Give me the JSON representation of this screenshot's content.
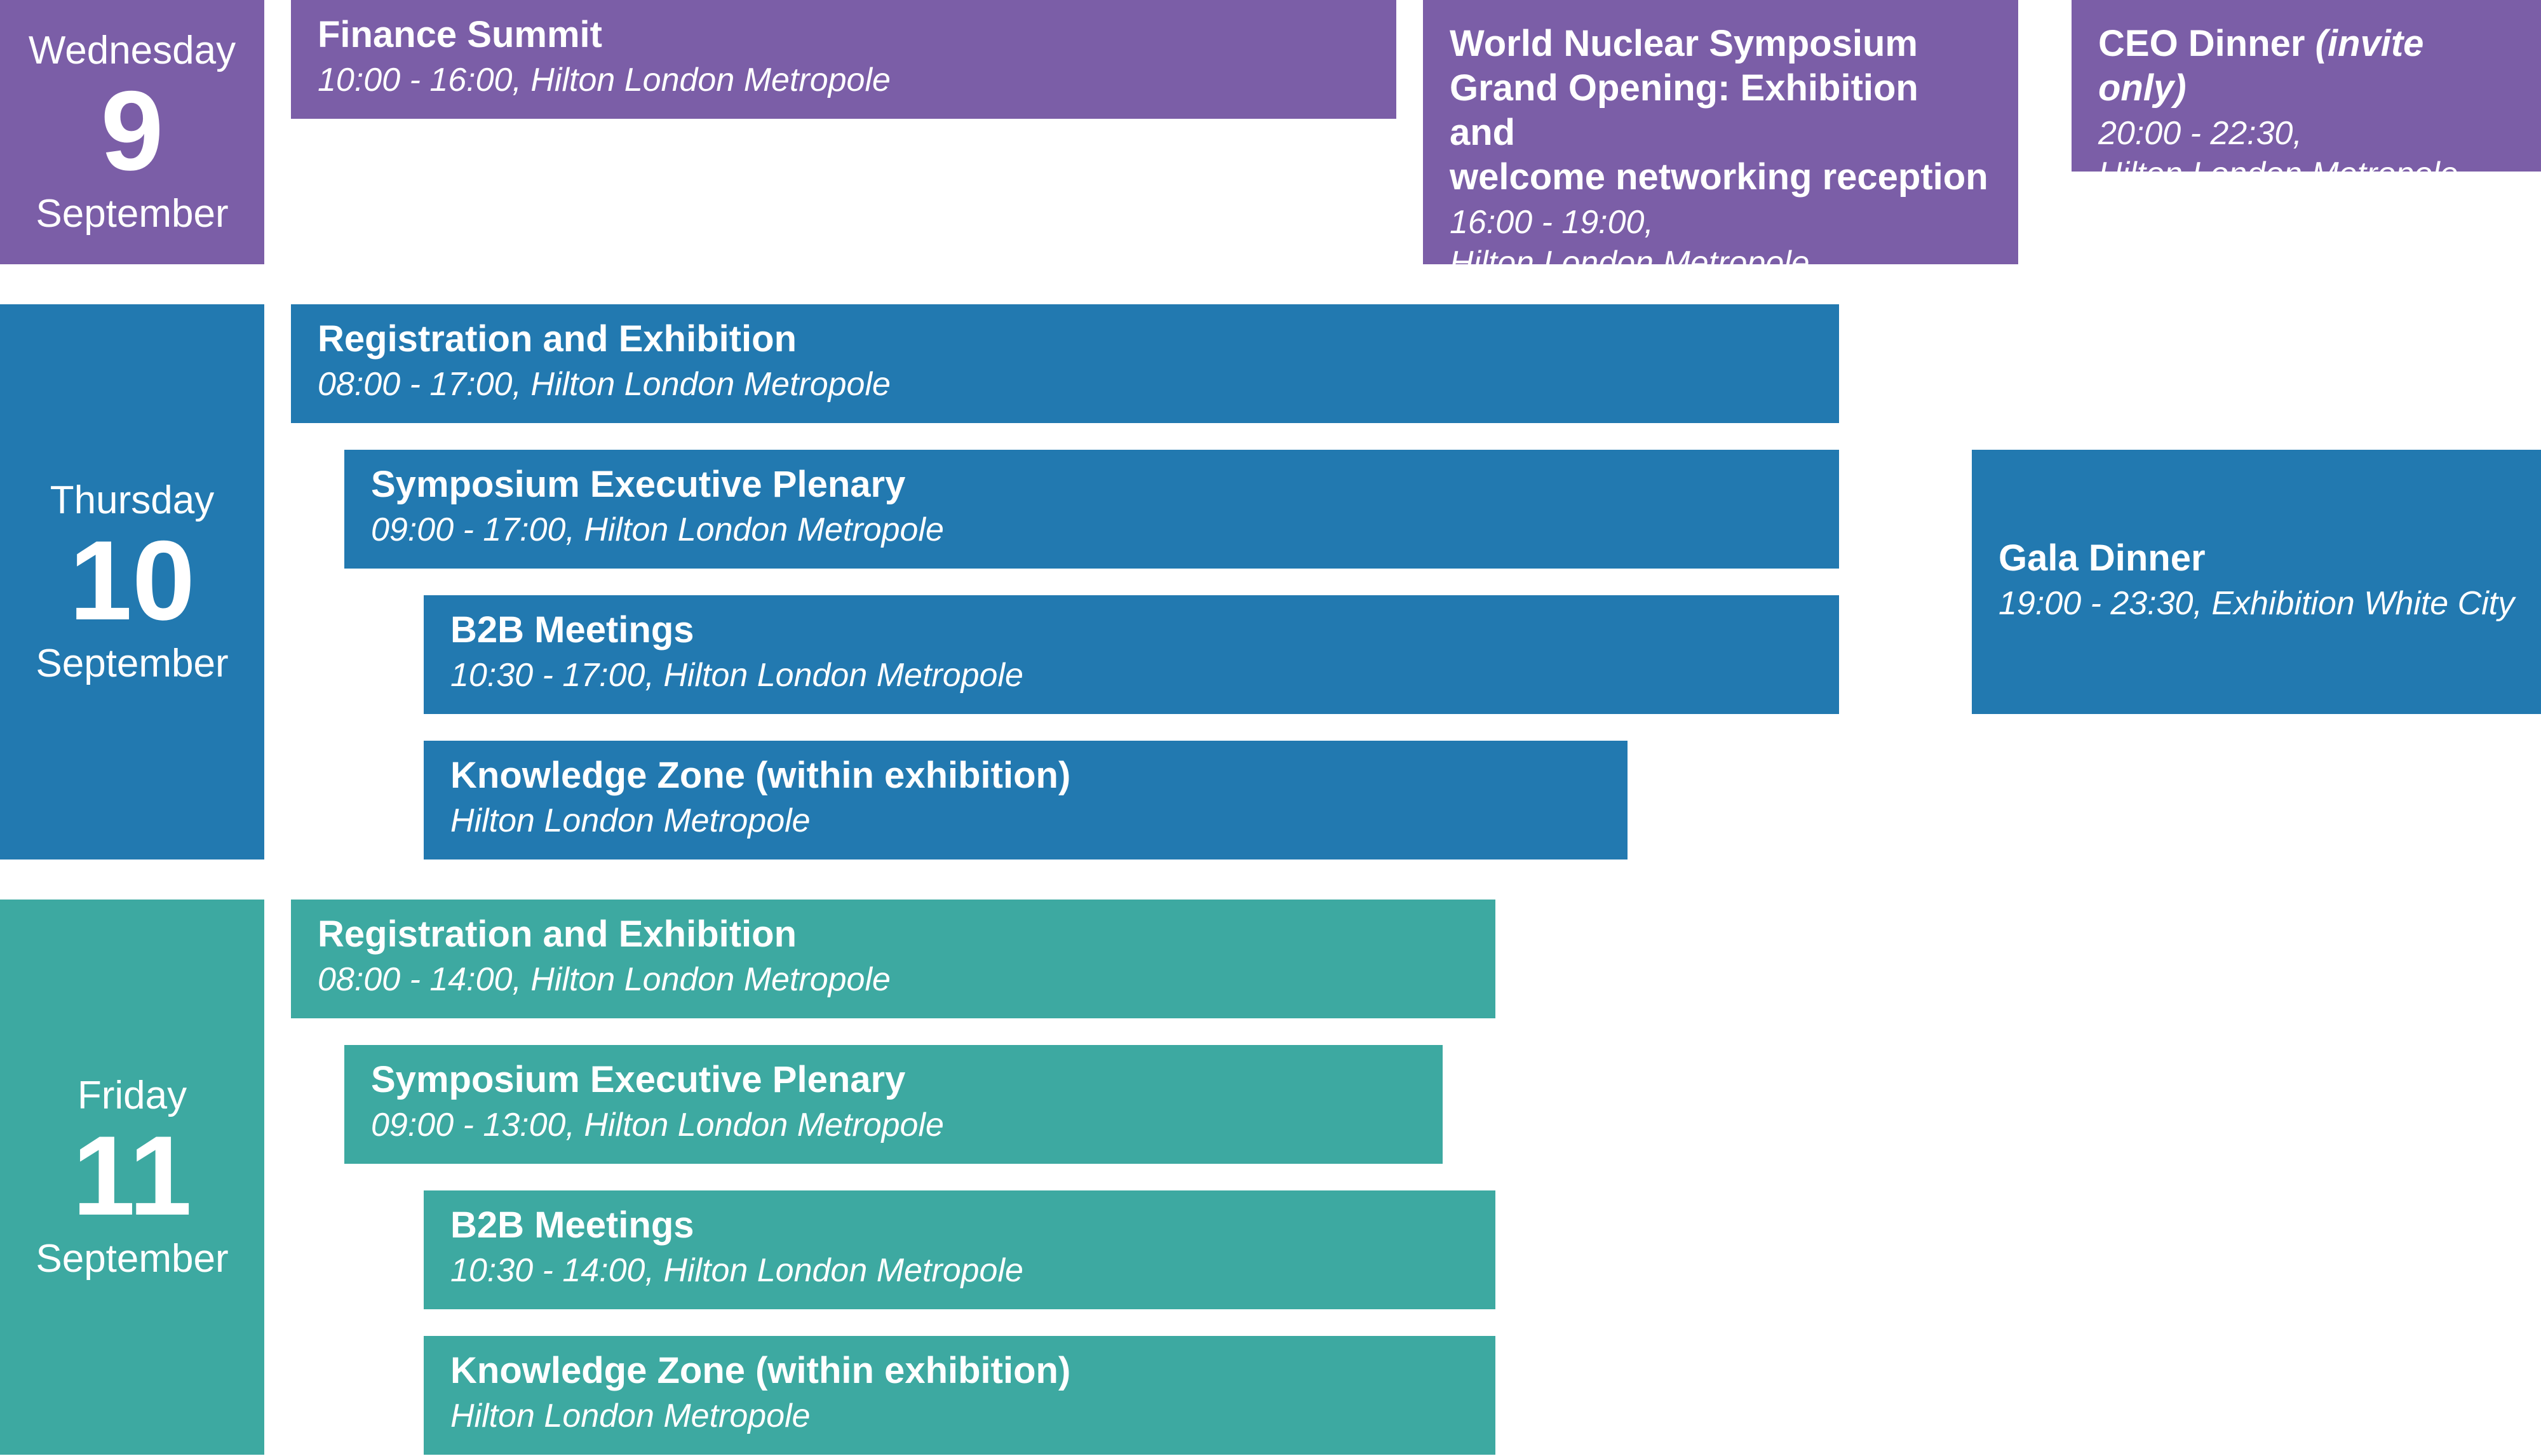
{
  "colors": {
    "wednesday": "#7b5ea7",
    "thursday": "#2279b0",
    "friday": "#3da9a1"
  },
  "days": [
    {
      "name": "Wednesday",
      "number": "9",
      "month": "September"
    },
    {
      "name": "Thursday",
      "number": "10",
      "month": "September"
    },
    {
      "name": "Friday",
      "number": "11",
      "month": "September"
    }
  ],
  "events": {
    "wed_finance": {
      "title": "Finance Summit",
      "detail": "10:00 - 16:00, Hilton London Metropole"
    },
    "wed_opening": {
      "title_lines": [
        "World Nuclear Symposium",
        "Grand Opening: Exhibition and",
        "welcome networking reception"
      ],
      "detail_lines": [
        "16:00 - 19:00,",
        "Hilton London Metropole"
      ]
    },
    "wed_ceo": {
      "title": "CEO Dinner",
      "title_note": "(invite only)",
      "detail_lines": [
        "20:00 - 22:30,",
        "Hilton London Metropole"
      ]
    },
    "thu_registration": {
      "title": "Registration and Exhibition",
      "detail": "08:00 - 17:00, Hilton London Metropole"
    },
    "thu_plenary": {
      "title": "Symposium Executive Plenary",
      "detail": "09:00 - 17:00, Hilton London Metropole"
    },
    "thu_b2b": {
      "title": "B2B Meetings",
      "detail": "10:30 - 17:00, Hilton London Metropole"
    },
    "thu_knowledge": {
      "title": "Knowledge Zone (within exhibition)",
      "detail": "Hilton London Metropole"
    },
    "thu_gala": {
      "title": "Gala Dinner",
      "detail": "19:00 - 23:30, Exhibition White City"
    },
    "fri_registration": {
      "title": "Registration and Exhibition",
      "detail": "08:00 - 14:00, Hilton London Metropole"
    },
    "fri_plenary": {
      "title": "Symposium Executive Plenary",
      "detail": "09:00 - 13:00, Hilton London Metropole"
    },
    "fri_b2b": {
      "title": "B2B Meetings",
      "detail": "10:30 - 14:00, Hilton London Metropole"
    },
    "fri_knowledge": {
      "title": "Knowledge Zone (within exhibition)",
      "detail": "Hilton London Metropole"
    }
  }
}
